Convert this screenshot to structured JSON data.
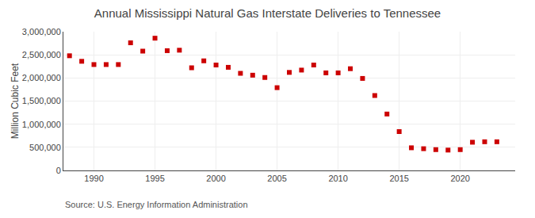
{
  "chart_data": {
    "type": "scatter",
    "title": "Annual Mississippi Natural Gas Interstate Deliveries to Tennessee",
    "ylabel": "Million Cubic Feet",
    "annotations": [
      "Source: U.S. Energy Information Administration"
    ],
    "x": [
      1988,
      1989,
      1990,
      1991,
      1992,
      1993,
      1994,
      1995,
      1996,
      1997,
      1998,
      1999,
      2000,
      2001,
      2002,
      2003,
      2004,
      2005,
      2006,
      2007,
      2008,
      2009,
      2010,
      2011,
      2012,
      2013,
      2014,
      2015,
      2016,
      2017,
      2018,
      2019,
      2020,
      2021,
      2022,
      2023
    ],
    "values": [
      2480000,
      2360000,
      2290000,
      2290000,
      2290000,
      2760000,
      2580000,
      2860000,
      2590000,
      2600000,
      2220000,
      2370000,
      2280000,
      2230000,
      2100000,
      2060000,
      2010000,
      1790000,
      2120000,
      2170000,
      2280000,
      2110000,
      2110000,
      2200000,
      1990000,
      1620000,
      1220000,
      840000,
      490000,
      470000,
      450000,
      440000,
      450000,
      610000,
      620000,
      620000
    ],
    "color": "#cc0000",
    "marker": "square",
    "xlim": [
      1987.5,
      2024.5
    ],
    "xticks": [
      1990,
      1995,
      2000,
      2005,
      2010,
      2015,
      2020
    ],
    "ylim": [
      0,
      3000000
    ],
    "yticks": [
      0,
      {
        "value": 500000,
        "label": "500,000"
      },
      {
        "value": 1000000,
        "label": "1,000,000"
      },
      {
        "value": 1500000,
        "label": "1,500,000"
      },
      {
        "value": 2000000,
        "label": "2,000,000"
      },
      {
        "value": 2500000,
        "label": "2,500,000"
      },
      {
        "value": 3000000,
        "label": "3,000,000"
      }
    ],
    "grid": true,
    "legend": false
  }
}
